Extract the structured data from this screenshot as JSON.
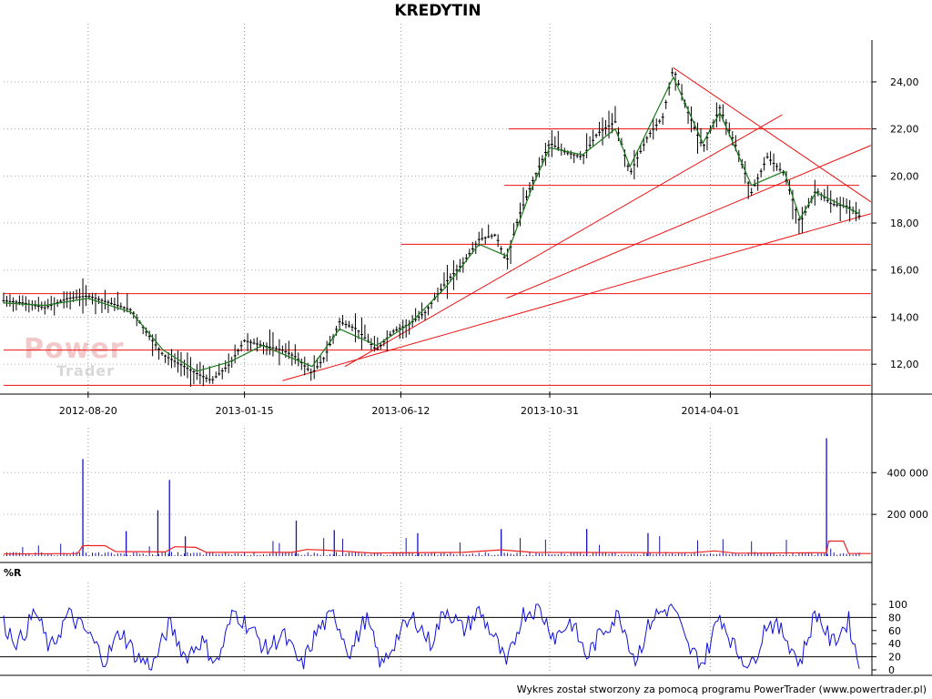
{
  "chart_data": [
    {
      "type": "line",
      "title": "KREDYTIN",
      "x_tick_labels": [
        "2012-08-20",
        "2013-01-15",
        "2013-06-12",
        "2013-10-31",
        "2014-04-01"
      ],
      "x_tick_dates": [
        "2012-08-20",
        "2013-01-15",
        "2013-06-12",
        "2013-10-31",
        "2014-04-01"
      ],
      "x_range": [
        "2012-06-01",
        "2014-09-01"
      ],
      "y_ticks": [
        12,
        14,
        16,
        18,
        20,
        22,
        24
      ],
      "y_tick_labels": [
        "12,00",
        "14,00",
        "16,00",
        "18,00",
        "20,00",
        "22,00",
        "24,00"
      ],
      "ylim": [
        11.0,
        25.7
      ],
      "grid": true,
      "series": [
        {
          "kind": "close",
          "color": "#000000",
          "points": [
            [
              "2012-06-01",
              14.7
            ],
            [
              "2012-06-20",
              14.6
            ],
            [
              "2012-07-10",
              14.4
            ],
            [
              "2012-08-01",
              14.8
            ],
            [
              "2012-08-20",
              14.9
            ],
            [
              "2012-09-10",
              14.6
            ],
            [
              "2012-09-30",
              14.3
            ],
            [
              "2012-10-15",
              13.3
            ],
            [
              "2012-10-30",
              12.4
            ],
            [
              "2012-11-15",
              12.0
            ],
            [
              "2012-12-01",
              11.6
            ],
            [
              "2012-12-15",
              11.3
            ],
            [
              "2013-01-01",
              12.0
            ],
            [
              "2013-01-15",
              13.0
            ],
            [
              "2013-02-01",
              12.8
            ],
            [
              "2013-02-20",
              12.6
            ],
            [
              "2013-03-05",
              12.3
            ],
            [
              "2013-03-20",
              11.6
            ],
            [
              "2013-04-01",
              12.3
            ],
            [
              "2013-04-15",
              13.8
            ],
            [
              "2013-05-01",
              13.5
            ],
            [
              "2013-05-20",
              12.6
            ],
            [
              "2013-06-05",
              13.4
            ],
            [
              "2013-06-20",
              13.7
            ],
            [
              "2013-07-05",
              14.2
            ],
            [
              "2013-07-25",
              15.5
            ],
            [
              "2013-08-10",
              16.3
            ],
            [
              "2013-08-25",
              17.3
            ],
            [
              "2013-09-10",
              17.5
            ],
            [
              "2013-09-20",
              16.3
            ],
            [
              "2013-10-01",
              18.2
            ],
            [
              "2013-10-15",
              19.8
            ],
            [
              "2013-10-31",
              21.4
            ],
            [
              "2013-11-15",
              21.0
            ],
            [
              "2013-12-01",
              20.8
            ],
            [
              "2013-12-15",
              21.8
            ],
            [
              "2014-01-01",
              22.3
            ],
            [
              "2014-01-15",
              20.1
            ],
            [
              "2014-02-01",
              21.7
            ],
            [
              "2014-02-15",
              22.5
            ],
            [
              "2014-02-25",
              24.6
            ],
            [
              "2014-03-10",
              22.8
            ],
            [
              "2014-03-25",
              21.2
            ],
            [
              "2014-04-10",
              22.9
            ],
            [
              "2014-04-25",
              21.3
            ],
            [
              "2014-05-10",
              19.3
            ],
            [
              "2014-05-25",
              20.8
            ],
            [
              "2014-06-10",
              20.1
            ],
            [
              "2014-06-25",
              18.0
            ],
            [
              "2014-07-10",
              19.4
            ],
            [
              "2014-07-25",
              18.8
            ],
            [
              "2014-08-10",
              18.7
            ],
            [
              "2014-08-20",
              18.3
            ]
          ]
        },
        {
          "kind": "moving-average",
          "color": "#1a7a1a",
          "points": [
            [
              "2012-06-01",
              14.6
            ],
            [
              "2012-07-10",
              14.5
            ],
            [
              "2012-08-20",
              14.8
            ],
            [
              "2012-09-30",
              14.2
            ],
            [
              "2012-10-30",
              12.6
            ],
            [
              "2012-12-01",
              11.7
            ],
            [
              "2013-01-01",
              12.1
            ],
            [
              "2013-02-01",
              12.8
            ],
            [
              "2013-03-20",
              11.9
            ],
            [
              "2013-04-15",
              13.5
            ],
            [
              "2013-05-20",
              12.8
            ],
            [
              "2013-06-20",
              13.7
            ],
            [
              "2013-07-25",
              15.3
            ],
            [
              "2013-08-25",
              17.1
            ],
            [
              "2013-09-20",
              16.6
            ],
            [
              "2013-10-15",
              19.6
            ],
            [
              "2013-10-31",
              21.2
            ],
            [
              "2013-12-01",
              20.9
            ],
            [
              "2014-01-01",
              22.0
            ],
            [
              "2014-01-15",
              20.4
            ],
            [
              "2014-02-25",
              24.2
            ],
            [
              "2014-03-25",
              21.4
            ],
            [
              "2014-04-10",
              22.7
            ],
            [
              "2014-05-10",
              19.6
            ],
            [
              "2014-06-10",
              20.2
            ],
            [
              "2014-06-25",
              18.2
            ],
            [
              "2014-07-10",
              19.3
            ],
            [
              "2014-08-20",
              18.4
            ]
          ]
        }
      ],
      "annotations": [
        {
          "kind": "horizontal-line",
          "y": 11.1,
          "x1": "2012-06-01",
          "x2": "2014-08-31"
        },
        {
          "kind": "horizontal-line",
          "y": 15.0,
          "x1": "2012-06-01",
          "x2": "2014-08-31"
        },
        {
          "kind": "horizontal-line",
          "y": 12.6,
          "x1": "2012-06-01",
          "x2": "2014-08-31"
        },
        {
          "kind": "horizontal-line",
          "y": 17.1,
          "x1": "2013-06-12",
          "x2": "2014-08-31"
        },
        {
          "kind": "horizontal-line",
          "y": 19.6,
          "x1": "2013-09-18",
          "x2": "2014-08-20"
        },
        {
          "kind": "horizontal-line",
          "y": 22.0,
          "x1": "2013-09-22",
          "x2": "2014-08-31"
        },
        {
          "kind": "trend-line",
          "x1": "2013-02-20",
          "y1": 11.3,
          "x2": "2014-08-31",
          "y2": 18.4
        },
        {
          "kind": "trend-line",
          "x1": "2013-04-20",
          "y1": 11.9,
          "x2": "2014-06-08",
          "y2": 22.6
        },
        {
          "kind": "trend-line",
          "x1": "2013-09-20",
          "y1": 14.8,
          "x2": "2014-08-31",
          "y2": 21.3
        },
        {
          "kind": "trend-line",
          "x1": "2014-02-25",
          "y1": 24.6,
          "x2": "2014-08-31",
          "y2": 18.9
        }
      ]
    },
    {
      "type": "bar",
      "panel": "volume",
      "y_ticks": [
        200000,
        400000
      ],
      "y_tick_labels": [
        "200 000",
        "400 000"
      ],
      "ylim": [
        0,
        580000
      ],
      "spikes": [
        [
          "2012-08-15",
          465000
        ],
        [
          "2012-09-25",
          120000
        ],
        [
          "2012-10-25",
          220000
        ],
        [
          "2012-11-05",
          365000
        ],
        [
          "2012-11-20",
          95000
        ],
        [
          "2013-03-05",
          170000
        ],
        [
          "2013-04-10",
          125000
        ],
        [
          "2013-06-28",
          110000
        ],
        [
          "2013-09-15",
          130000
        ],
        [
          "2013-12-05",
          130000
        ],
        [
          "2014-02-01",
          110000
        ],
        [
          "2014-07-20",
          565000
        ]
      ],
      "base_level": 12000,
      "average_color": "#ee2222",
      "average_points": [
        [
          "2012-06-01",
          10000
        ],
        [
          "2012-08-10",
          12000
        ],
        [
          "2012-08-15",
          50000
        ],
        [
          "2012-09-05",
          50000
        ],
        [
          "2012-09-15",
          22000
        ],
        [
          "2012-11-01",
          20000
        ],
        [
          "2012-11-10",
          45000
        ],
        [
          "2012-11-30",
          42000
        ],
        [
          "2012-12-10",
          18000
        ],
        [
          "2013-03-01",
          18000
        ],
        [
          "2013-03-15",
          32000
        ],
        [
          "2013-04-05",
          28000
        ],
        [
          "2013-05-15",
          15000
        ],
        [
          "2013-08-10",
          18000
        ],
        [
          "2013-09-15",
          30000
        ],
        [
          "2013-10-15",
          18000
        ],
        [
          "2014-03-15",
          16000
        ],
        [
          "2014-04-05",
          25000
        ],
        [
          "2014-04-25",
          14000
        ],
        [
          "2014-07-20",
          16000
        ],
        [
          "2014-07-22",
          72000
        ],
        [
          "2014-08-05",
          72000
        ],
        [
          "2014-08-10",
          12000
        ],
        [
          "2014-08-31",
          12000
        ]
      ]
    },
    {
      "type": "line",
      "panel": "oscillator",
      "title": "%R",
      "y_ticks": [
        0,
        20,
        40,
        60,
        80,
        100
      ],
      "y_tick_labels": [
        "0",
        "20",
        "40",
        "60",
        "80",
        "100"
      ],
      "ylim": [
        0,
        100
      ],
      "reference_lines": [
        20,
        80
      ],
      "color": "#1010dd",
      "points": [
        [
          "2012-06-01",
          70
        ],
        [
          "2012-06-15",
          40
        ],
        [
          "2012-07-01",
          90
        ],
        [
          "2012-07-15",
          30
        ],
        [
          "2012-08-01",
          85
        ],
        [
          "2012-08-20",
          55
        ],
        [
          "2012-09-05",
          15
        ],
        [
          "2012-09-20",
          60
        ],
        [
          "2012-10-05",
          20
        ],
        [
          "2012-10-20",
          5
        ],
        [
          "2012-11-05",
          70
        ],
        [
          "2012-11-20",
          20
        ],
        [
          "2012-12-05",
          45
        ],
        [
          "2012-12-20",
          10
        ],
        [
          "2013-01-05",
          90
        ],
        [
          "2013-01-20",
          65
        ],
        [
          "2013-02-05",
          30
        ],
        [
          "2013-02-20",
          55
        ],
        [
          "2013-03-10",
          5
        ],
        [
          "2013-03-25",
          60
        ],
        [
          "2013-04-10",
          85
        ],
        [
          "2013-04-25",
          25
        ],
        [
          "2013-05-10",
          80
        ],
        [
          "2013-05-25",
          5
        ],
        [
          "2013-06-10",
          55
        ],
        [
          "2013-06-25",
          80
        ],
        [
          "2013-07-10",
          40
        ],
        [
          "2013-07-25",
          95
        ],
        [
          "2013-08-10",
          60
        ],
        [
          "2013-08-25",
          90
        ],
        [
          "2013-09-10",
          45
        ],
        [
          "2013-09-20",
          5
        ],
        [
          "2013-10-05",
          85
        ],
        [
          "2013-10-20",
          95
        ],
        [
          "2013-11-05",
          50
        ],
        [
          "2013-11-20",
          75
        ],
        [
          "2013-12-05",
          20
        ],
        [
          "2013-12-20",
          60
        ],
        [
          "2014-01-05",
          85
        ],
        [
          "2014-01-20",
          15
        ],
        [
          "2014-02-05",
          80
        ],
        [
          "2014-02-25",
          98
        ],
        [
          "2014-03-10",
          35
        ],
        [
          "2014-03-25",
          10
        ],
        [
          "2014-04-10",
          85
        ],
        [
          "2014-04-25",
          30
        ],
        [
          "2014-05-10",
          5
        ],
        [
          "2014-05-25",
          75
        ],
        [
          "2014-06-10",
          55
        ],
        [
          "2014-06-25",
          10
        ],
        [
          "2014-07-10",
          90
        ],
        [
          "2014-07-25",
          40
        ],
        [
          "2014-08-10",
          75
        ],
        [
          "2014-08-20",
          5
        ]
      ]
    }
  ],
  "watermark": {
    "line1": "Power",
    "line2": "Trader"
  },
  "footer": "Wykres został stworzony za pomocą programu PowerTrader (www.powertrader.pl)"
}
